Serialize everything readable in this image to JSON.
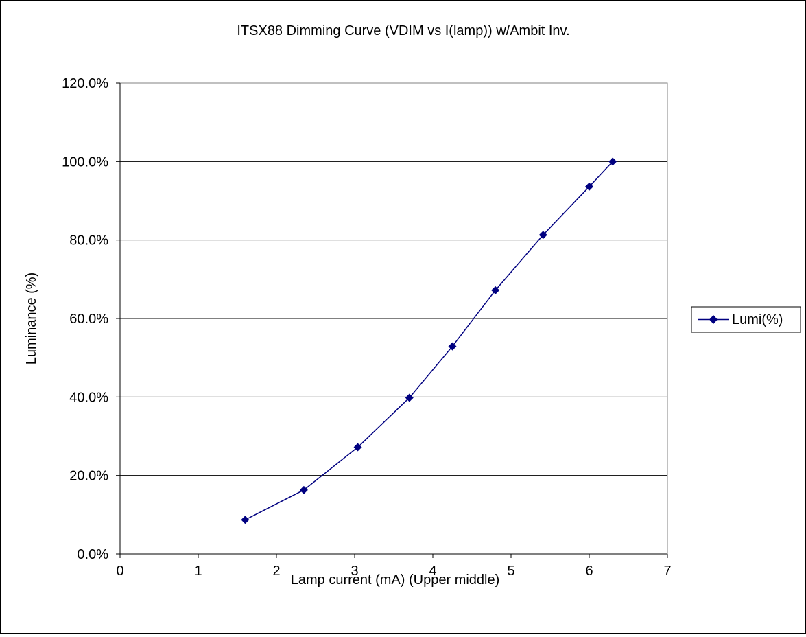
{
  "chart_data": {
    "type": "scatter",
    "title": "ITSX88 Dimming Curve (VDIM vs I(lamp)) w/Ambit Inv.",
    "xlabel": "Lamp current (mA) (Upper middle)",
    "ylabel": "Luminance (%)",
    "xlim": [
      0,
      7
    ],
    "ylim": [
      0,
      120
    ],
    "x_ticks": [
      "0",
      "1",
      "2",
      "3",
      "4",
      "5",
      "6",
      "7"
    ],
    "y_ticks": [
      "0.0%",
      "20.0%",
      "40.0%",
      "60.0%",
      "80.0%",
      "100.0%",
      "120.0%"
    ],
    "grid": "horizontal",
    "legend_position": "right",
    "series": [
      {
        "name": "Lumi(%)",
        "color": "#000080",
        "marker": "diamond",
        "x": [
          1.6,
          2.35,
          3.04,
          3.7,
          4.25,
          4.8,
          5.41,
          6.0,
          6.3
        ],
        "y": [
          8.7,
          16.3,
          27.2,
          39.8,
          52.9,
          67.2,
          81.3,
          93.6,
          100.0
        ]
      }
    ]
  }
}
